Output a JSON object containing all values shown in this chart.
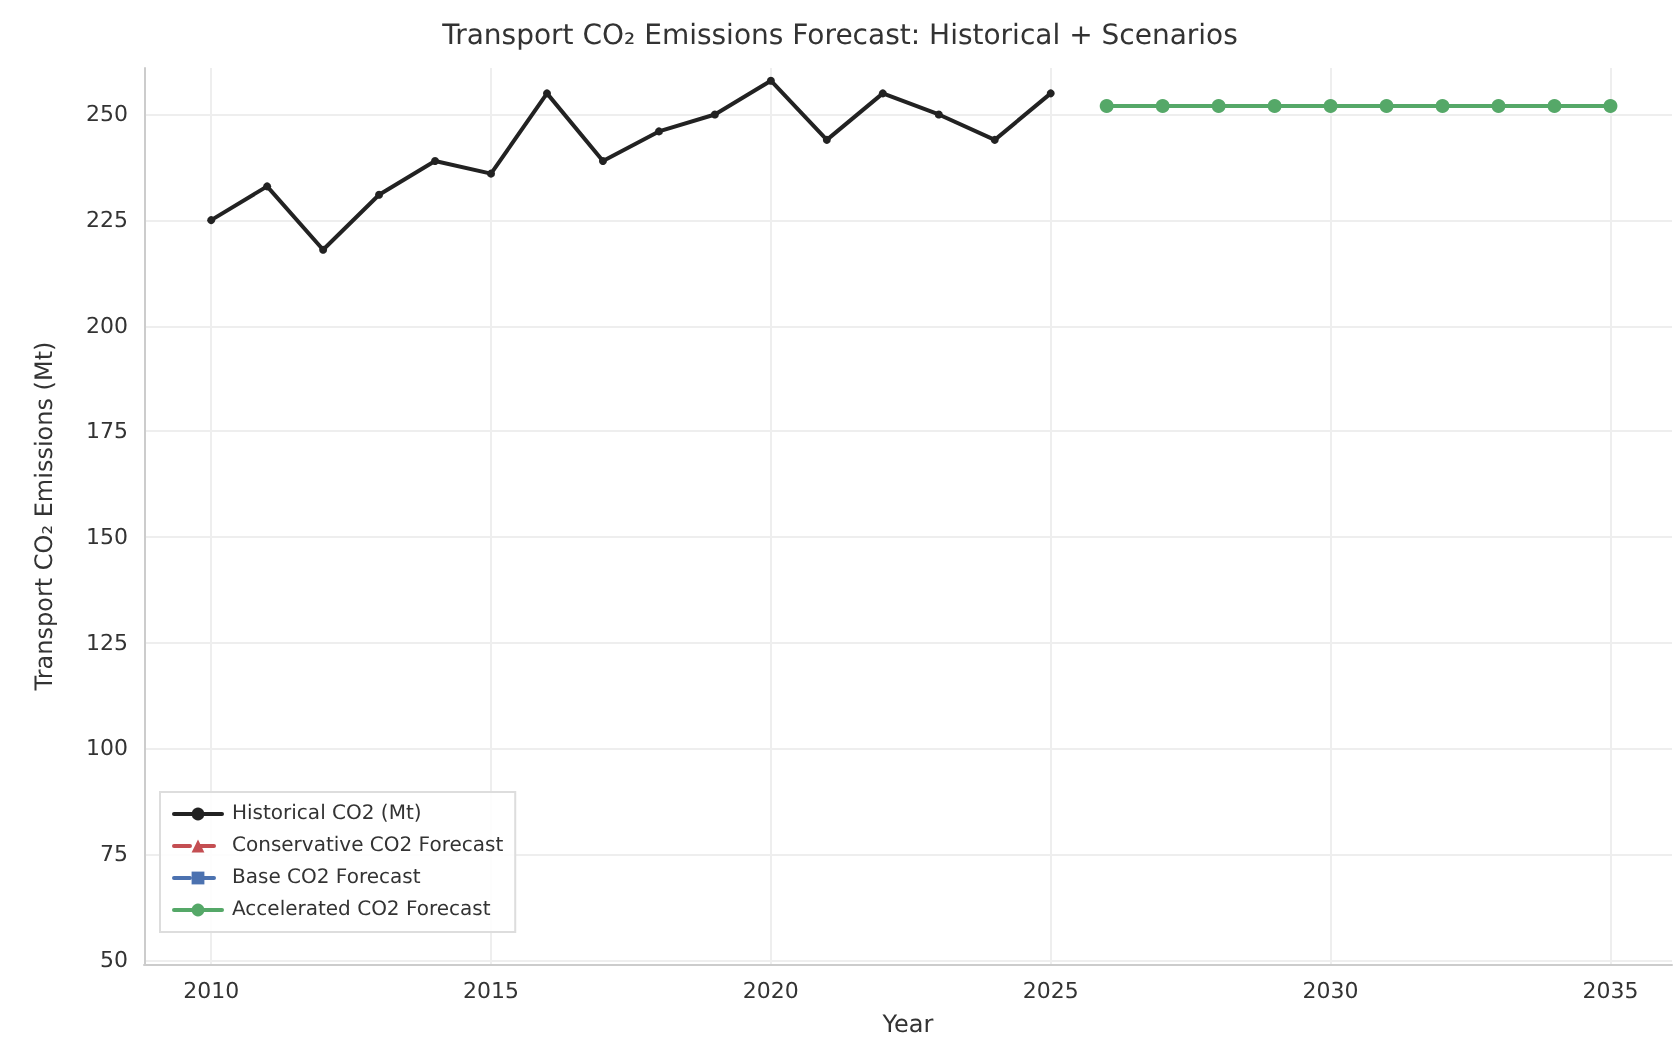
{
  "chart_data": {
    "type": "line",
    "title": "Transport CO₂ Emissions Forecast: Historical + Scenarios",
    "xlabel": "Year",
    "ylabel": "Transport CO₂ Emissions (Mt)",
    "xlim": [
      2008.8,
      2036.1
    ],
    "xticks": [
      2010,
      2015,
      2020,
      2025,
      2030,
      2035
    ],
    "ylim": [
      49,
      261
    ],
    "yticks": [
      50,
      75,
      100,
      125,
      150,
      175,
      200,
      225,
      250
    ],
    "grid": true,
    "legend": "bottom left",
    "series": [
      {
        "name": "Historical CO2 (Mt)",
        "color": "#222222",
        "marker": "circle",
        "line_style": "solid",
        "x": [
          2010,
          2011,
          2012,
          2013,
          2014,
          2015,
          2016,
          2017,
          2018,
          2019,
          2020,
          2021,
          2022,
          2023,
          2024,
          2025
        ],
        "values": [
          225,
          233,
          218,
          231,
          239,
          236,
          255,
          239,
          246,
          250,
          258,
          244,
          255,
          250,
          244,
          255
        ]
      },
      {
        "name": "Conservative CO2 Forecast",
        "color": "#c44e52",
        "marker": "triangle",
        "line_style": "dashed"
      },
      {
        "name": "Base CO2 Forecast",
        "color": "#4c72b0",
        "marker": "square",
        "line_style": "dashed"
      },
      {
        "name": "Accelerated CO2 Forecast",
        "color": "#55a868",
        "marker": "circle",
        "line_style": "solid",
        "x": [
          2026,
          2027,
          2028,
          2029,
          2030,
          2031,
          2032,
          2033,
          2034,
          2035
        ],
        "values": [
          252,
          252,
          252,
          252,
          252,
          252,
          252,
          252,
          252,
          252
        ]
      }
    ]
  }
}
